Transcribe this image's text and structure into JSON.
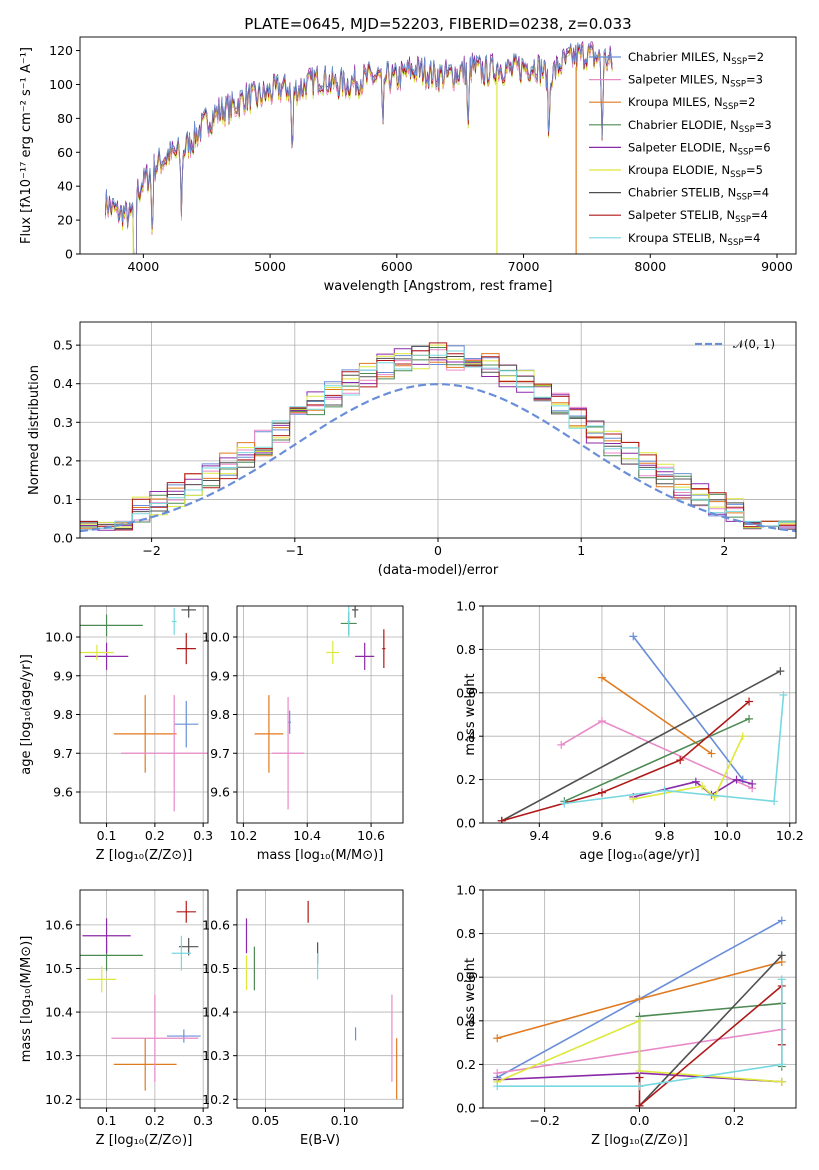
{
  "colors": {
    "cornflower": "#6a8fd8",
    "orange": "#e07a1f",
    "green": "#4e8a54",
    "pink": "#e88ac8",
    "purple": "#8b2aa8",
    "yellow": "#dde83a",
    "gray": "#505050",
    "red": "#b01818",
    "cyan": "#78d8e0"
  },
  "chart_data": [
    {
      "id": "spectrum",
      "type": "line",
      "title": "PLATE=0645, MJD=52203, FIBERID=0238, z=0.033",
      "xlabel": "wavelength [Angstrom, rest frame]",
      "ylabel": "Flux [fλ10⁻¹⁷ erg cm⁻² s⁻¹ A⁻¹]",
      "xlim": [
        3500,
        9150
      ],
      "ylim": [
        0,
        128
      ],
      "xticks": [
        4000,
        5000,
        6000,
        7000,
        8000,
        9000
      ],
      "yticks": [
        0,
        20,
        40,
        60,
        80,
        100,
        120
      ],
      "grid": false,
      "legend_position": "top-right",
      "series": [
        {
          "name": "Chabrier MILES, N",
          "sub": "SSP",
          "tail": "=2",
          "color": "cornflower"
        },
        {
          "name": "Salpeter MILES, N",
          "sub": "SSP",
          "tail": "=3",
          "color": "pink"
        },
        {
          "name": "Kroupa MILES, N",
          "sub": "SSP",
          "tail": "=2",
          "color": "orange"
        },
        {
          "name": "Chabrier ELODIE, N",
          "sub": "SSP",
          "tail": "=3",
          "color": "green"
        },
        {
          "name": "Salpeter ELODIE, N",
          "sub": "SSP",
          "tail": "=6",
          "color": "purple"
        },
        {
          "name": "Kroupa ELODIE, N",
          "sub": "SSP",
          "tail": "=5",
          "color": "yellow"
        },
        {
          "name": "Chabrier STELIB, N",
          "sub": "SSP",
          "tail": "=4",
          "color": "gray"
        },
        {
          "name": "Salpeter STELIB, N",
          "sub": "SSP",
          "tail": "=4",
          "color": "red"
        },
        {
          "name": "Kroupa STELIB, N",
          "sub": "SSP",
          "tail": "=4",
          "color": "cyan"
        }
      ],
      "continuum": [
        [
          3700,
          30
        ],
        [
          3800,
          24
        ],
        [
          3900,
          22
        ],
        [
          3950,
          36
        ],
        [
          4000,
          42
        ],
        [
          4100,
          52
        ],
        [
          4200,
          58
        ],
        [
          4300,
          60
        ],
        [
          4400,
          68
        ],
        [
          4500,
          78
        ],
        [
          4600,
          84
        ],
        [
          4700,
          86
        ],
        [
          4800,
          92
        ],
        [
          4900,
          92
        ],
        [
          5000,
          95
        ],
        [
          5100,
          98
        ],
        [
          5200,
          96
        ],
        [
          5300,
          100
        ],
        [
          5400,
          104
        ],
        [
          5500,
          100
        ],
        [
          5600,
          100
        ],
        [
          5700,
          102
        ],
        [
          5800,
          104
        ],
        [
          5900,
          104
        ],
        [
          6000,
          103
        ],
        [
          6100,
          108
        ],
        [
          6200,
          108
        ],
        [
          6300,
          105
        ],
        [
          6400,
          105
        ],
        [
          6500,
          107
        ],
        [
          6600,
          110
        ],
        [
          6700,
          107
        ],
        [
          6800,
          110
        ],
        [
          6900,
          108
        ],
        [
          7000,
          110
        ],
        [
          7100,
          111
        ],
        [
          7200,
          104
        ],
        [
          7300,
          112
        ],
        [
          7400,
          116
        ],
        [
          7500,
          118
        ],
        [
          7600,
          115
        ],
        [
          7700,
          113
        ]
      ],
      "dips": [
        [
          3934,
          3900
        ],
        [
          4070,
          1300
        ],
        [
          4300,
          1100
        ],
        [
          5175,
          1400
        ],
        [
          5890,
          1200
        ],
        [
          6563,
          1300
        ],
        [
          7200,
          1300
        ],
        [
          7620,
          1500
        ]
      ],
      "spikes": [
        [
          3920,
          "yellow",
          0
        ],
        [
          6790,
          "yellow",
          0
        ],
        [
          7415,
          "orange",
          0
        ]
      ]
    },
    {
      "id": "residuals",
      "type": "step",
      "xlabel": "(data-model)/error",
      "ylabel": "Normed distribution",
      "xlim": [
        -2.5,
        2.5
      ],
      "ylim": [
        0,
        0.56
      ],
      "xticks": [
        -2,
        -1,
        0,
        1,
        2
      ],
      "yticks": [
        0.0,
        0.1,
        0.2,
        0.3,
        0.4,
        0.5
      ],
      "grid": true,
      "legend": "𝒩(0, 1)",
      "legend_position": "top-right",
      "bins": 41,
      "series_colors": [
        "cornflower",
        "pink",
        "orange",
        "green",
        "purple",
        "yellow",
        "gray",
        "red",
        "cyan"
      ]
    },
    {
      "id": "age_vs_Z",
      "type": "errorbar",
      "xlabel": "Z [log₁₀(Z/Z⊙)]",
      "ylabel": "age  [log₁₀(age/yr)]",
      "xlim": [
        0.045,
        0.31
      ],
      "ylim": [
        9.52,
        10.08
      ],
      "xticks": [
        0.1,
        0.2,
        0.3
      ],
      "yticks": [
        9.6,
        9.7,
        9.8,
        9.9,
        10.0
      ],
      "grid": true,
      "points": [
        {
          "c": "cornflower",
          "x": 0.265,
          "y": 9.775,
          "ex": 0.025,
          "ey": 0.06
        },
        {
          "c": "orange",
          "x": 0.18,
          "y": 9.75,
          "ex": 0.065,
          "ey": 0.1
        },
        {
          "c": "green",
          "x": 0.1,
          "y": 10.03,
          "ex": 0.075,
          "ey": 0.028
        },
        {
          "c": "pink",
          "x": 0.24,
          "y": 9.7,
          "ex": 0.11,
          "ey": 0.15
        },
        {
          "c": "purple",
          "x": 0.1,
          "y": 9.95,
          "ex": 0.045,
          "ey": 0.035
        },
        {
          "c": "yellow",
          "x": 0.08,
          "y": 9.96,
          "ex": 0.035,
          "ey": 0.02
        },
        {
          "c": "gray",
          "x": 0.27,
          "y": 10.07,
          "ex": 0.015,
          "ey": 0.02
        },
        {
          "c": "red",
          "x": 0.265,
          "y": 9.97,
          "ex": 0.02,
          "ey": 0.04
        },
        {
          "c": "cyan",
          "x": 0.24,
          "y": 10.04,
          "ex": 0.005,
          "ey": 0.035
        }
      ]
    },
    {
      "id": "age_vs_mass",
      "type": "errorbar",
      "xlabel": "mass [log₁₀(M/M⊙)]",
      "ylabel": "",
      "xlim": [
        10.18,
        10.7
      ],
      "ylim": [
        9.52,
        10.08
      ],
      "xticks": [
        10.2,
        10.4,
        10.6
      ],
      "yticks": [
        9.6,
        9.7,
        9.8,
        9.9,
        10.0
      ],
      "grid": true,
      "points": [
        {
          "c": "cornflower",
          "x": 10.345,
          "y": 9.78,
          "ex": 0.004,
          "ey": 0.03
        },
        {
          "c": "orange",
          "x": 10.28,
          "y": 9.75,
          "ex": 0.045,
          "ey": 0.1
        },
        {
          "c": "green",
          "x": 10.53,
          "y": 10.035,
          "ex": 0.025,
          "ey": 0.03
        },
        {
          "c": "pink",
          "x": 10.34,
          "y": 9.7,
          "ex": 0.05,
          "ey": 0.145
        },
        {
          "c": "purple",
          "x": 10.58,
          "y": 9.95,
          "ex": 0.03,
          "ey": 0.035
        },
        {
          "c": "yellow",
          "x": 10.48,
          "y": 9.96,
          "ex": 0.02,
          "ey": 0.03
        },
        {
          "c": "gray",
          "x": 10.55,
          "y": 10.07,
          "ex": 0.01,
          "ey": 0.02
        },
        {
          "c": "red",
          "x": 10.64,
          "y": 9.97,
          "ex": 0.005,
          "ey": 0.05
        },
        {
          "c": "cyan",
          "x": 10.53,
          "y": 10.04,
          "ex": 0.005,
          "ey": 0.04
        }
      ]
    },
    {
      "id": "weight_vs_age",
      "type": "line",
      "xlabel": "age  [log₁₀(age/yr)]",
      "ylabel": "mass weight",
      "xlim": [
        9.22,
        10.22
      ],
      "ylim": [
        0,
        1
      ],
      "xticks": [
        9.4,
        9.6,
        9.8,
        10.0,
        10.2
      ],
      "yticks": [
        0.0,
        0.2,
        0.4,
        0.6,
        0.8,
        1.0
      ],
      "grid": true,
      "series": [
        {
          "c": "cornflower",
          "pts": [
            [
              9.7,
              0.86
            ],
            [
              10.05,
              0.2
            ]
          ]
        },
        {
          "c": "orange",
          "pts": [
            [
              9.6,
              0.67
            ],
            [
              9.95,
              0.32
            ]
          ]
        },
        {
          "c": "pink",
          "pts": [
            [
              9.47,
              0.36
            ],
            [
              9.6,
              0.47
            ],
            [
              10.08,
              0.16
            ]
          ]
        },
        {
          "c": "green",
          "pts": [
            [
              9.48,
              0.1
            ],
            [
              10.07,
              0.48
            ]
          ]
        },
        {
          "c": "purple",
          "pts": [
            [
              9.7,
              0.12
            ],
            [
              9.9,
              0.19
            ],
            [
              9.95,
              0.13
            ],
            [
              10.03,
              0.2
            ],
            [
              10.08,
              0.18
            ]
          ]
        },
        {
          "c": "yellow",
          "pts": [
            [
              9.7,
              0.11
            ],
            [
              9.92,
              0.17
            ],
            [
              9.96,
              0.12
            ],
            [
              10.05,
              0.4
            ]
          ]
        },
        {
          "c": "gray",
          "pts": [
            [
              9.28,
              0.01
            ],
            [
              10.17,
              0.7
            ]
          ]
        },
        {
          "c": "red",
          "pts": [
            [
              9.28,
              0.01
            ],
            [
              9.6,
              0.14
            ],
            [
              9.85,
              0.29
            ],
            [
              10.07,
              0.56
            ]
          ]
        },
        {
          "c": "cyan",
          "pts": [
            [
              9.48,
              0.09
            ],
            [
              9.8,
              0.15
            ],
            [
              10.15,
              0.1
            ],
            [
              10.18,
              0.59
            ]
          ]
        }
      ]
    },
    {
      "id": "mass_vs_Z",
      "type": "errorbar",
      "xlabel": "Z [log₁₀(Z/Z⊙)]",
      "ylabel": "mass [log₁₀(M/M⊙)]",
      "xlim": [
        0.045,
        0.31
      ],
      "ylim": [
        10.18,
        10.68
      ],
      "xticks": [
        0.1,
        0.2,
        0.3
      ],
      "yticks": [
        10.2,
        10.3,
        10.4,
        10.5,
        10.6
      ],
      "grid": true,
      "points": [
        {
          "c": "cornflower",
          "x": 0.26,
          "y": 10.345,
          "ex": 0.035,
          "ey": 0.015
        },
        {
          "c": "orange",
          "x": 0.18,
          "y": 10.28,
          "ex": 0.065,
          "ey": 0.06
        },
        {
          "c": "green",
          "x": 0.1,
          "y": 10.53,
          "ex": 0.075,
          "ey": 0.035
        },
        {
          "c": "pink",
          "x": 0.2,
          "y": 10.34,
          "ex": 0.09,
          "ey": 0.1
        },
        {
          "c": "purple",
          "x": 0.1,
          "y": 10.575,
          "ex": 0.05,
          "ey": 0.04
        },
        {
          "c": "yellow",
          "x": 0.09,
          "y": 10.475,
          "ex": 0.03,
          "ey": 0.03
        },
        {
          "c": "gray",
          "x": 0.27,
          "y": 10.55,
          "ex": 0.02,
          "ey": 0.02
        },
        {
          "c": "red",
          "x": 0.265,
          "y": 10.63,
          "ex": 0.02,
          "ey": 0.025
        },
        {
          "c": "cyan",
          "x": 0.255,
          "y": 10.535,
          "ex": 0.02,
          "ey": 0.04
        }
      ]
    },
    {
      "id": "mass_vs_EBV",
      "type": "errorbar",
      "xlabel": "E(B-V)",
      "ylabel": "",
      "xlim": [
        0.032,
        0.137
      ],
      "ylim": [
        10.18,
        10.68
      ],
      "xticks": [
        0.05,
        0.1
      ],
      "yticks": [
        10.2,
        10.3,
        10.4,
        10.5,
        10.6
      ],
      "grid": true,
      "points": [
        {
          "c": "cornflower",
          "x": 0.107,
          "y": 10.35,
          "ex": 0,
          "ey": 0.015
        },
        {
          "c": "orange",
          "x": 0.133,
          "y": 10.27,
          "ex": 0,
          "ey": 0.07
        },
        {
          "c": "green",
          "x": 0.043,
          "y": 10.5,
          "ex": 0,
          "ey": 0.05
        },
        {
          "c": "pink",
          "x": 0.13,
          "y": 10.34,
          "ex": 0,
          "ey": 0.1
        },
        {
          "c": "purple",
          "x": 0.038,
          "y": 10.575,
          "ex": 0,
          "ey": 0.04
        },
        {
          "c": "yellow",
          "x": 0.038,
          "y": 10.49,
          "ex": 0,
          "ey": 0.04
        },
        {
          "c": "gray",
          "x": 0.083,
          "y": 10.535,
          "ex": 0,
          "ey": 0.025
        },
        {
          "c": "red",
          "x": 0.077,
          "y": 10.63,
          "ex": 0,
          "ey": 0.025
        },
        {
          "c": "cyan",
          "x": 0.083,
          "y": 10.505,
          "ex": 0,
          "ey": 0.03
        }
      ]
    },
    {
      "id": "weight_vs_Z",
      "type": "line",
      "xlabel": "Z [log₁₀(Z/Z⊙)]",
      "ylabel": "mass weight",
      "xlim": [
        -0.33,
        0.33
      ],
      "ylim": [
        0,
        1
      ],
      "xticks": [
        -0.2,
        0.0,
        0.2
      ],
      "yticks": [
        0.0,
        0.2,
        0.4,
        0.6,
        0.8,
        1.0
      ],
      "grid": true,
      "series": [
        {
          "c": "cornflower",
          "pts": [
            [
              -0.3,
              0.14
            ],
            [
              0.0,
              0.5
            ],
            [
              0.3,
              0.86
            ]
          ]
        },
        {
          "c": "orange",
          "pts": [
            [
              -0.3,
              0.32
            ],
            [
              0.0,
              0.5
            ],
            [
              0.3,
              0.67
            ]
          ]
        },
        {
          "c": "pink",
          "pts": [
            [
              -0.3,
              0.16
            ],
            [
              0.3,
              0.36
            ]
          ]
        },
        {
          "c": "green",
          "pts": [
            [
              0.0,
              0.1
            ],
            [
              0.0,
              0.42
            ],
            [
              0.3,
              0.48
            ],
            [
              0.3,
              0.19
            ]
          ]
        },
        {
          "c": "purple",
          "pts": [
            [
              -0.3,
              0.13
            ],
            [
              0.0,
              0.16
            ],
            [
              0.3,
              0.12
            ]
          ]
        },
        {
          "c": "yellow",
          "pts": [
            [
              -0.3,
              0.12
            ],
            [
              0.0,
              0.4
            ],
            [
              0.0,
              0.17
            ],
            [
              0.3,
              0.12
            ]
          ]
        },
        {
          "c": "gray",
          "pts": [
            [
              0.0,
              0.01
            ],
            [
              0.3,
              0.7
            ]
          ]
        },
        {
          "c": "red",
          "pts": [
            [
              0.0,
              0.14
            ],
            [
              0.0,
              0.01
            ],
            [
              0.3,
              0.56
            ],
            [
              0.3,
              0.29
            ]
          ]
        },
        {
          "c": "cyan",
          "pts": [
            [
              -0.3,
              0.1
            ],
            [
              0.0,
              0.1
            ],
            [
              0.3,
              0.2
            ],
            [
              0.3,
              0.59
            ]
          ]
        }
      ]
    }
  ]
}
